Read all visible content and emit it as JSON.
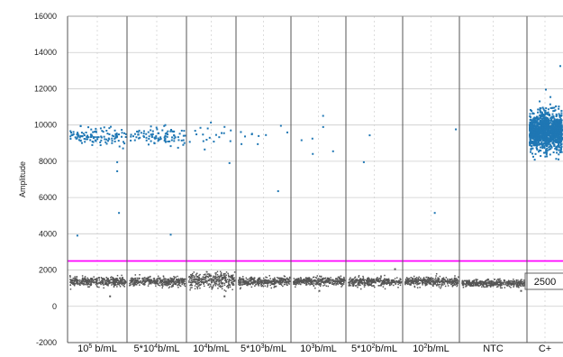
{
  "chart_data": {
    "type": "scatter",
    "ylabel": "Amplitude",
    "ylim": [
      -2000,
      16000
    ],
    "yticks": [
      -2000,
      0,
      2000,
      4000,
      6000,
      8000,
      10000,
      12000,
      14000,
      16000
    ],
    "grid": true,
    "threshold": {
      "value": 2500,
      "label": "2500",
      "color": "#ff00ff"
    },
    "colors": {
      "positive": "#1f77b4",
      "negative": "#555555",
      "threshold": "#ff00ff"
    },
    "wells": [
      {
        "label": "10",
        "sup": "5",
        "tail": " b/mL",
        "positive_count": 120,
        "positive_mean": 9400,
        "positive_spread": 250,
        "negative_mean": 1400,
        "negative_spread": 120,
        "extra_points": [
          [
            0.15,
            3950
          ],
          [
            0.85,
            5200
          ],
          [
            0.82,
            7500
          ],
          [
            0.82,
            8000
          ],
          [
            0.7,
            600
          ]
        ]
      },
      {
        "label": "5*10",
        "sup": "4",
        "tail": "b/mL",
        "positive_count": 95,
        "positive_mean": 9450,
        "positive_spread": 250,
        "negative_mean": 1400,
        "negative_spread": 120,
        "extra_points": [
          [
            0.72,
            4000
          ]
        ]
      },
      {
        "label": "10",
        "sup": "4",
        "tail": "b/mL",
        "positive_count": 18,
        "positive_mean": 9400,
        "positive_spread": 350,
        "negative_mean": 1450,
        "negative_spread": 220,
        "extra_points": [
          [
            0.85,
            7950
          ],
          [
            0.35,
            8700
          ],
          [
            0.75,
            600
          ]
        ]
      },
      {
        "label": "5*10",
        "sup": "3",
        "tail": "b/mL",
        "positive_count": 10,
        "positive_mean": 9350,
        "positive_spread": 300,
        "negative_mean": 1400,
        "negative_spread": 120,
        "extra_points": [
          [
            0.75,
            6400
          ]
        ]
      },
      {
        "label": "10",
        "sup": "3",
        "tail": "b/mL",
        "positive_count": 5,
        "positive_mean": 9300,
        "positive_spread": 400,
        "negative_mean": 1400,
        "negative_spread": 120,
        "extra_points": [
          [
            0.75,
            8600
          ],
          [
            0.5,
            900
          ]
        ]
      },
      {
        "label": "5*10",
        "sup": "2",
        "tail": "b/mL",
        "positive_count": 1,
        "positive_mean": 9500,
        "positive_spread": 100,
        "negative_mean": 1400,
        "negative_spread": 120,
        "extra_points": [
          [
            0.3,
            8000
          ],
          [
            0.85,
            2100
          ]
        ]
      },
      {
        "label": "10",
        "sup": "2",
        "tail": "b/mL",
        "positive_count": 1,
        "positive_mean": 9800,
        "positive_spread": 100,
        "negative_mean": 1400,
        "negative_spread": 120,
        "extra_points": [
          [
            0.55,
            5200
          ]
        ]
      },
      {
        "label": "NTC",
        "sup": "",
        "tail": "",
        "positive_count": 0,
        "positive_mean": 9300,
        "positive_spread": 100,
        "negative_mean": 1300,
        "negative_spread": 100,
        "extra_points": [
          [
            0.9,
            900
          ]
        ]
      },
      {
        "label": "C+",
        "sup": "",
        "tail": "",
        "positive_count": 1300,
        "positive_mean": 9700,
        "positive_spread": 500,
        "negative_mean": 1400,
        "negative_spread": 120,
        "negative_count_override": 0,
        "extra_points": [
          [
            0.15,
            8300
          ],
          [
            0.9,
            13300
          ],
          [
            0.5,
            12000
          ]
        ]
      }
    ]
  }
}
